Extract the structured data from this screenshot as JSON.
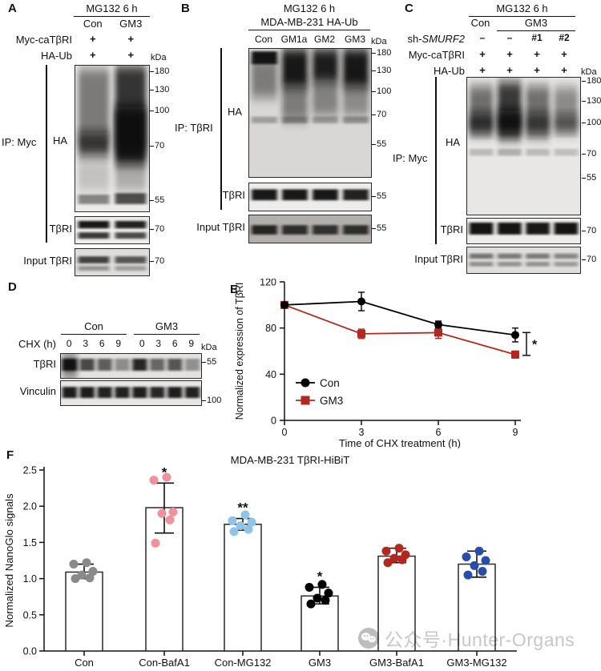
{
  "panel_a": {
    "letter": "A",
    "treatment": "MG132 6 h",
    "groups": [
      "Con",
      "GM3"
    ],
    "row_labels": [
      "Myc-caTβRI",
      "HA-Ub"
    ],
    "row_values": [
      [
        "+",
        "+"
      ],
      [
        "+",
        "+"
      ]
    ],
    "kda": "kDa",
    "ip": "IP: Myc",
    "blot_labels": [
      "HA",
      "TβRI",
      "Input  TβRI"
    ],
    "markers_ha": [
      "180",
      "130",
      "100",
      "70",
      "55"
    ],
    "marker_tbri": "70",
    "marker_input": "70"
  },
  "panel_b": {
    "letter": "B",
    "treatment": "MG132 6 h",
    "cell_line": "MDA-MB-231 HA-Ub",
    "lanes": [
      "Con",
      "GM1a",
      "GM2",
      "GM3"
    ],
    "kda": "kDa",
    "ip": "IP: TβRI",
    "blot_labels": [
      "HA",
      "TβRI",
      "Input  TβRI"
    ],
    "markers_ha": [
      "180",
      "130",
      "100",
      "70",
      "55"
    ],
    "marker_tbri": "55",
    "marker_input": "55"
  },
  "panel_c": {
    "letter": "C",
    "treatment": "MG132 6 h",
    "groups": [
      "Con",
      "GM3"
    ],
    "sh_label_prefix": "sh-",
    "sh_gene": "SMURF2",
    "sh_values": [
      "–",
      "–",
      "#1",
      "#2"
    ],
    "row_labels": [
      "Myc-caTβRI",
      "HA-Ub"
    ],
    "row_values": [
      [
        "+",
        "+",
        "+",
        "+"
      ],
      [
        "+",
        "+",
        "+",
        "+"
      ]
    ],
    "kda": "kDa",
    "ip": "IP: Myc",
    "blot_labels": [
      "HA",
      "TβRI",
      "Input  TβRI"
    ],
    "markers_ha": [
      "180",
      "130",
      "100",
      "70",
      "55"
    ],
    "marker_tbri": "70",
    "marker_input": "70"
  },
  "panel_d": {
    "letter": "D",
    "groups": [
      "Con",
      "GM3"
    ],
    "chx_label": "CHX (h)",
    "times": [
      "0",
      "3",
      "6",
      "9"
    ],
    "kda": "kDa",
    "blot_labels": [
      "TβRI",
      "Vinculin"
    ],
    "marker_tbri": "55",
    "marker_vinculin": "100"
  },
  "panel_e": {
    "letter": "E"
  },
  "panel_f": {
    "letter": "F"
  },
  "watermark": {
    "icon": "wechat-icon",
    "text": "公众号·Hunter-Organs"
  },
  "chart_data": [
    {
      "id": "panelE",
      "type": "line",
      "x": [
        0,
        3,
        6,
        9
      ],
      "xlabel": "Time of CHX treatment (h)",
      "ylabel": "Normalized expression of TβRI",
      "ylim": [
        0,
        120
      ],
      "yticks": [
        0,
        40,
        80,
        120
      ],
      "grid": false,
      "legend_position": "lower-left-inside",
      "series": [
        {
          "name": "Con",
          "marker": "circle",
          "color": "#000000",
          "values": [
            100,
            103,
            83,
            74
          ],
          "errors": [
            2,
            8,
            3,
            6
          ]
        },
        {
          "name": "GM3",
          "marker": "square",
          "color": "#b2281e",
          "values": [
            100,
            75,
            76,
            57
          ],
          "errors": [
            2,
            4,
            5,
            3
          ]
        }
      ],
      "significance": "*"
    },
    {
      "id": "panelF",
      "type": "bar",
      "title": "MDA-MB-231 TβRI-HiBiT",
      "ylabel": "Normalized NanoGlo signals",
      "ylim": [
        0,
        2.5
      ],
      "yticks": [
        "0.0",
        "0.5",
        "1.0",
        "1.5",
        "2.0",
        "2.5"
      ],
      "categories": [
        "Con",
        "Con-BafA1",
        "Con-MG132",
        "GM3",
        "GM3-BafA1",
        "GM3-MG132"
      ],
      "values": [
        1.09,
        1.98,
        1.75,
        0.76,
        1.31,
        1.2
      ],
      "error_low": [
        1.0,
        1.63,
        1.67,
        0.65,
        1.22,
        1.02
      ],
      "error_high": [
        1.2,
        2.32,
        1.83,
        0.88,
        1.42,
        1.38
      ],
      "dot_colors": [
        "#8a8a8a",
        "#f0919c",
        "#8ec4ea",
        "#000000",
        "#b2281e",
        "#2a4da8"
      ],
      "dots": [
        [
          1.0,
          1.01,
          1.05,
          1.1,
          1.2,
          1.22
        ],
        [
          1.49,
          1.81,
          1.9,
          1.92,
          2.36,
          2.4
        ],
        [
          1.65,
          1.68,
          1.73,
          1.78,
          1.8,
          1.88
        ],
        [
          0.65,
          0.7,
          0.73,
          0.8,
          0.88,
          0.92
        ],
        [
          1.22,
          1.26,
          1.28,
          1.33,
          1.38,
          1.42
        ],
        [
          1.05,
          1.1,
          1.18,
          1.25,
          1.3,
          1.38
        ]
      ],
      "significance": [
        "",
        "*",
        "**",
        "*",
        "",
        ""
      ]
    }
  ]
}
